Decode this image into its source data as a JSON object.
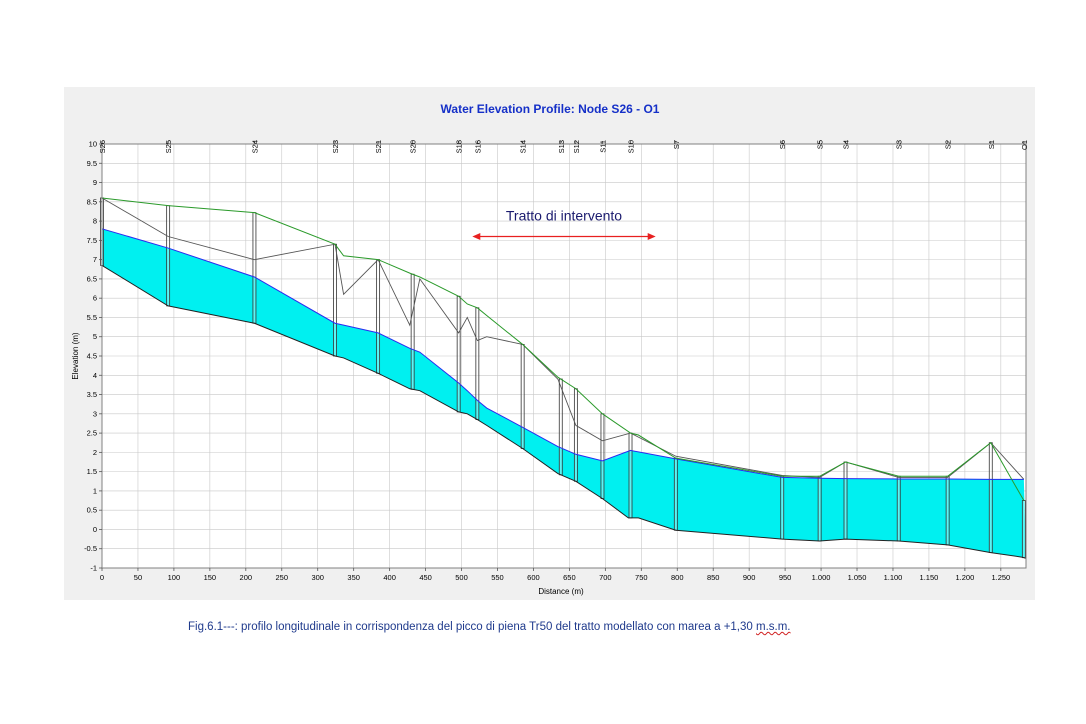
{
  "chart_data": {
    "type": "area",
    "title": "Water Elevation Profile:  Node S26 - O1",
    "xlabel": "Distance (m)",
    "ylabel": "Elevation (m)",
    "xlim": [
      0,
      1285
    ],
    "ylim": [
      -1,
      10
    ],
    "x_ticks": [
      0,
      50,
      100,
      150,
      200,
      250,
      300,
      350,
      400,
      450,
      500,
      550,
      600,
      650,
      700,
      750,
      800,
      850,
      900,
      950,
      1000,
      1050,
      1100,
      1150,
      1200,
      1250
    ],
    "x_tick_labels": [
      "0",
      "50",
      "100",
      "150",
      "200",
      "250",
      "300",
      "350",
      "400",
      "450",
      "500",
      "550",
      "600",
      "650",
      "700",
      "750",
      "800",
      "850",
      "900",
      "950",
      "1.000",
      "1.050",
      "1.100",
      "1.150",
      "1.200",
      "1.250"
    ],
    "y_ticks": [
      -1,
      -0.5,
      0,
      0.5,
      1,
      1.5,
      2,
      2.5,
      3,
      3.5,
      4,
      4.5,
      5,
      5.5,
      6,
      6.5,
      7,
      7.5,
      8,
      8.5,
      9,
      9.5,
      10
    ],
    "y_tick_labels": [
      "-1",
      "-0.5",
      "0",
      "0.5",
      "1",
      "1.5",
      "2",
      "2.5",
      "3",
      "3.5",
      "4",
      "4.5",
      "5",
      "5.5",
      "6",
      "6.5",
      "7",
      "7.5",
      "8",
      "8.5",
      "9",
      "9.5",
      "10"
    ],
    "grid": true,
    "nodes": [
      {
        "name": "S26",
        "x": 0
      },
      {
        "name": "S25",
        "x": 92
      },
      {
        "name": "S24",
        "x": 212
      },
      {
        "name": "S23",
        "x": 324
      },
      {
        "name": "S21",
        "x": 384
      },
      {
        "name": "S20",
        "x": 432
      },
      {
        "name": "S18",
        "x": 496
      },
      {
        "name": "S16",
        "x": 522
      },
      {
        "name": "S14",
        "x": 585
      },
      {
        "name": "S13",
        "x": 638
      },
      {
        "name": "S12",
        "x": 659
      },
      {
        "name": "S11",
        "x": 696
      },
      {
        "name": "S10",
        "x": 735
      },
      {
        "name": "S7",
        "x": 798
      },
      {
        "name": "S6",
        "x": 946
      },
      {
        "name": "S5",
        "x": 998
      },
      {
        "name": "S4",
        "x": 1034
      },
      {
        "name": "S3",
        "x": 1108
      },
      {
        "name": "S2",
        "x": 1176
      },
      {
        "name": "S1",
        "x": 1236
      },
      {
        "name": "O1",
        "x": 1282
      }
    ],
    "bed": {
      "x": [
        0,
        92,
        212,
        324,
        336,
        384,
        428,
        442,
        496,
        508,
        522,
        535,
        585,
        634,
        659,
        696,
        732,
        746,
        798,
        946,
        998,
        1034,
        1108,
        1176,
        1236,
        1280,
        1285
      ],
      "y": [
        6.85,
        5.8,
        5.35,
        4.5,
        4.45,
        4.05,
        3.65,
        3.6,
        3.05,
        3.0,
        2.85,
        2.7,
        2.1,
        1.45,
        1.25,
        0.8,
        0.3,
        0.3,
        -0.02,
        -0.25,
        -0.3,
        -0.25,
        -0.3,
        -0.4,
        -0.6,
        -0.72,
        -0.75
      ]
    },
    "water": {
      "x": [
        0,
        92,
        212,
        324,
        336,
        384,
        428,
        442,
        496,
        508,
        522,
        535,
        585,
        634,
        659,
        696,
        735,
        798,
        946,
        998,
        1034,
        1108,
        1176,
        1236,
        1282
      ],
      "y": [
        7.8,
        7.3,
        6.55,
        5.35,
        5.3,
        5.1,
        4.7,
        4.6,
        3.8,
        3.6,
        3.35,
        3.15,
        2.65,
        2.15,
        1.95,
        1.78,
        2.05,
        1.83,
        1.35,
        1.33,
        1.32,
        1.31,
        1.31,
        1.3,
        1.3
      ]
    },
    "crown": {
      "x": [
        0,
        92,
        212,
        324,
        336,
        384,
        428,
        442,
        496,
        508,
        522,
        535,
        585,
        634,
        659,
        696,
        735,
        798,
        946,
        998,
        1034,
        1108,
        1176,
        1236,
        1282
      ],
      "y": [
        8.6,
        7.6,
        7.0,
        7.4,
        6.1,
        7.0,
        5.3,
        6.5,
        5.1,
        5.5,
        4.9,
        5.0,
        4.8,
        3.9,
        2.7,
        2.3,
        2.5,
        1.9,
        1.4,
        1.35,
        1.75,
        1.35,
        1.35,
        2.25,
        1.3
      ]
    },
    "ground": {
      "x": [
        0,
        92,
        212,
        324,
        336,
        384,
        428,
        442,
        496,
        508,
        522,
        535,
        585,
        634,
        659,
        696,
        735,
        746,
        798,
        946,
        998,
        1034,
        1108,
        1176,
        1236,
        1282
      ],
      "y": [
        8.6,
        8.4,
        8.22,
        7.4,
        7.1,
        7.0,
        6.65,
        6.55,
        6.05,
        5.85,
        5.75,
        5.55,
        4.8,
        3.95,
        3.65,
        3.0,
        2.5,
        2.45,
        1.85,
        1.38,
        1.38,
        1.75,
        1.38,
        1.38,
        2.25,
        0.75
      ]
    },
    "annotation": {
      "label": "Tratto di intervento",
      "x_range": [
        515,
        770
      ],
      "y": 7.6
    },
    "colors": {
      "water_fill": "#00f0f0",
      "water_line": "#2a2af0",
      "ground_line": "#2a9a2a",
      "crown_line": "#555555",
      "arrow": "#e82020",
      "title": "#1530c8",
      "grid": "#c8c8c8"
    }
  },
  "caption": {
    "main": "Fig.6.1---: profilo longitudinale in corrispondenza del picco di piena Tr50 del tratto modellato con marea a +1,30",
    "unit": "m.s.m."
  }
}
